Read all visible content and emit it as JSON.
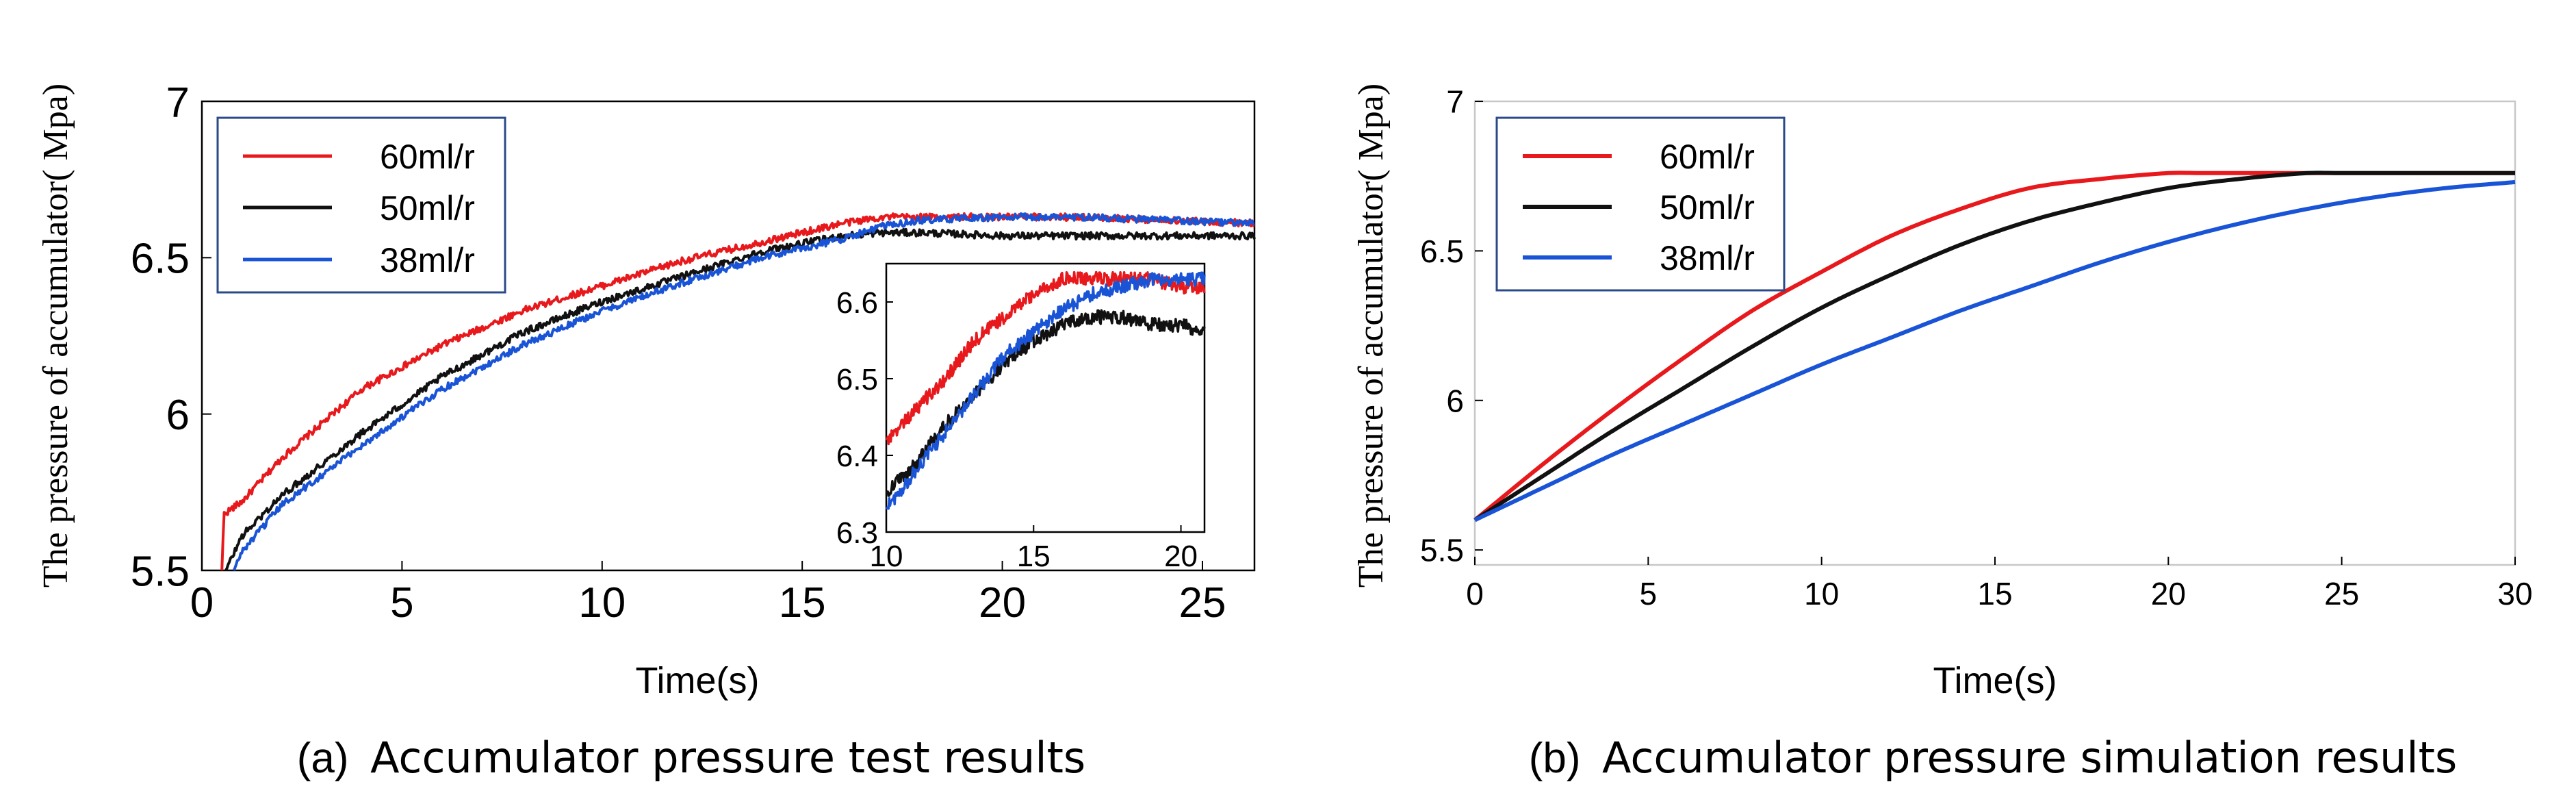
{
  "chart_data": [
    {
      "type": "line",
      "ylabel": "The pressure of accumulator( Mpa)",
      "xlabel": "Time(s)",
      "caption_prefix": "(a)",
      "caption_text": "Accumulator pressure test results",
      "xlim": [
        0,
        26.3
      ],
      "ylim": [
        5.5,
        7
      ],
      "xticks": [
        "0",
        "5",
        "10",
        "15",
        "20",
        "25"
      ],
      "yticks": [
        "5.5",
        "6",
        "6.5",
        "7"
      ],
      "legend": "top-left",
      "series": [
        {
          "name": "60ml/r",
          "color": "#e8191c",
          "x": [
            0.5,
            0.55,
            1,
            2,
            4,
            6,
            8,
            10,
            12,
            14,
            16,
            17,
            18,
            20,
            22,
            24,
            26.3
          ],
          "values": [
            5.5,
            5.68,
            5.72,
            5.86,
            6.08,
            6.22,
            6.33,
            6.41,
            6.49,
            6.55,
            6.61,
            6.63,
            6.63,
            6.63,
            6.63,
            6.62,
            6.61
          ]
        },
        {
          "name": "50ml/r",
          "color": "#111111",
          "x": [
            0.6,
            1,
            2,
            4,
            6,
            8,
            10,
            12,
            14,
            16,
            17,
            18,
            20,
            22,
            24,
            26.3
          ],
          "values": [
            5.5,
            5.61,
            5.74,
            5.94,
            6.12,
            6.26,
            6.36,
            6.44,
            6.52,
            6.57,
            6.58,
            6.58,
            6.57,
            6.57,
            6.57,
            6.57
          ]
        },
        {
          "name": "38ml/r",
          "color": "#1a54d6",
          "x": [
            0.8,
            1,
            2,
            4,
            6,
            8,
            10,
            12,
            14,
            16,
            17,
            18,
            20,
            22,
            24,
            26.3
          ],
          "values": [
            5.5,
            5.56,
            5.71,
            5.9,
            6.08,
            6.22,
            6.33,
            6.42,
            6.5,
            6.56,
            6.6,
            6.62,
            6.63,
            6.63,
            6.62,
            6.61
          ]
        }
      ],
      "inset": {
        "xlim": [
          10,
          20.8
        ],
        "ylim": [
          6.3,
          6.65
        ],
        "xticks": [
          "10",
          "15",
          "20"
        ],
        "yticks": [
          "6.3",
          "6.4",
          "6.5",
          "6.6"
        ],
        "series": [
          {
            "name": "60ml/r",
            "color": "#e8191c",
            "x": [
              10,
              11,
              12,
              13,
              14,
              15,
              16,
              17,
              18,
              19,
              20,
              20.8
            ],
            "values": [
              6.42,
              6.46,
              6.5,
              6.55,
              6.58,
              6.61,
              6.63,
              6.63,
              6.63,
              6.63,
              6.62,
              6.62
            ]
          },
          {
            "name": "50ml/r",
            "color": "#111111",
            "x": [
              10,
              11,
              12,
              13,
              14,
              15,
              16,
              17,
              18,
              19,
              20,
              20.8
            ],
            "values": [
              6.35,
              6.39,
              6.44,
              6.48,
              6.52,
              6.55,
              6.57,
              6.58,
              6.58,
              6.57,
              6.57,
              6.56
            ]
          },
          {
            "name": "38ml/r",
            "color": "#1a54d6",
            "x": [
              10,
              11,
              12,
              13,
              14,
              15,
              16,
              17,
              18,
              19,
              20,
              20.8
            ],
            "values": [
              6.33,
              6.38,
              6.43,
              6.48,
              6.53,
              6.56,
              6.59,
              6.61,
              6.62,
              6.63,
              6.63,
              6.63
            ]
          }
        ]
      }
    },
    {
      "type": "line",
      "ylabel": "The pressure of accumulator( Mpa)",
      "xlabel": "Time(s)",
      "caption_prefix": "(b)",
      "caption_text": "Accumulator pressure simulation results",
      "xlim": [
        0,
        30
      ],
      "ylim": [
        5.45,
        7
      ],
      "xticks": [
        "0",
        "5",
        "10",
        "15",
        "20",
        "25",
        "30"
      ],
      "yticks": [
        "5.5",
        "6",
        "6.5",
        "7"
      ],
      "legend": "top-left",
      "series": [
        {
          "name": "60ml/r",
          "color": "#e8191c",
          "x": [
            0,
            2,
            4,
            6,
            8,
            10,
            12,
            14,
            16,
            18,
            20,
            21,
            22,
            24,
            26,
            28,
            30
          ],
          "values": [
            5.6,
            5.79,
            5.97,
            6.14,
            6.3,
            6.43,
            6.55,
            6.64,
            6.71,
            6.74,
            6.76,
            6.76,
            6.76,
            6.76,
            6.76,
            6.76,
            6.76
          ]
        },
        {
          "name": "50ml/r",
          "color": "#111111",
          "x": [
            0,
            2,
            4,
            6,
            8,
            10,
            12,
            14,
            16,
            18,
            20,
            22,
            24,
            25,
            26,
            28,
            30
          ],
          "values": [
            5.6,
            5.75,
            5.9,
            6.04,
            6.18,
            6.31,
            6.42,
            6.52,
            6.6,
            6.66,
            6.71,
            6.74,
            6.76,
            6.76,
            6.76,
            6.76,
            6.76
          ]
        },
        {
          "name": "38ml/r",
          "color": "#1a54d6",
          "x": [
            0,
            2,
            4,
            6,
            8,
            10,
            12,
            14,
            16,
            18,
            20,
            22,
            24,
            26,
            28,
            30
          ],
          "values": [
            5.6,
            5.71,
            5.82,
            5.92,
            6.02,
            6.12,
            6.21,
            6.3,
            6.38,
            6.46,
            6.53,
            6.59,
            6.64,
            6.68,
            6.71,
            6.73
          ]
        }
      ]
    }
  ]
}
